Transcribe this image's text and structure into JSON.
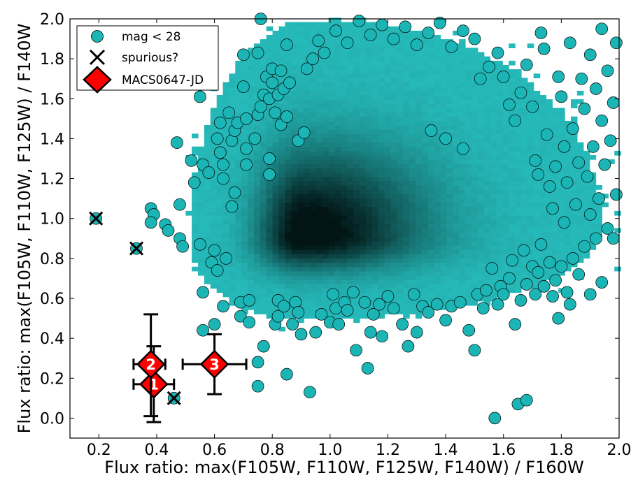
{
  "chart_data": {
    "type": "scatter",
    "title": "",
    "xlabel": "Flux ratio:  max(F105W, F110W, F125W, F140W)  /  F160W",
    "ylabel": "Flux ratio:  max(F105W, F110W, F125W)  /  F140W",
    "xlim": [
      0.1,
      2.0
    ],
    "ylim": [
      -0.1,
      2.0
    ],
    "x_ticks": [
      "0.2",
      "0.4",
      "0.6",
      "0.8",
      "1.0",
      "1.2",
      "1.4",
      "1.6",
      "1.8",
      "2.0"
    ],
    "y_ticks": [
      "0.0",
      "0.2",
      "0.4",
      "0.6",
      "0.8",
      "1.0",
      "1.2",
      "1.4",
      "1.6",
      "1.8",
      "2.0"
    ],
    "grid": false,
    "legend_position": "top-left",
    "colors": {
      "point_fill": "#1bb5b5",
      "density_light": "#26b9b9",
      "density_dark": "#021414",
      "candidate_fill": "#ff0000",
      "spurious_mark": "#000000"
    },
    "series": [
      {
        "name": "mag < 28",
        "kind": "density-2d",
        "peak": [
          0.9,
          0.9
        ],
        "note": "2D histogram of the bulk of the catalogue"
      },
      {
        "name": "mag < 28",
        "kind": "points",
        "points": [
          [
            0.19,
            1.0
          ],
          [
            0.33,
            0.85
          ],
          [
            0.46,
            0.1
          ],
          [
            0.38,
            1.05
          ],
          [
            0.39,
            1.02
          ],
          [
            0.38,
            0.98
          ],
          [
            0.43,
            0.97
          ],
          [
            0.44,
            0.94
          ],
          [
            0.47,
            1.38
          ],
          [
            0.48,
            0.9
          ],
          [
            0.48,
            1.07
          ],
          [
            0.49,
            0.86
          ],
          [
            0.52,
            1.29
          ],
          [
            0.53,
            1.18
          ],
          [
            0.55,
            1.61
          ],
          [
            0.56,
            1.27
          ],
          [
            0.55,
            0.87
          ],
          [
            0.56,
            0.63
          ],
          [
            0.56,
            0.44
          ],
          [
            0.58,
            1.23
          ],
          [
            0.59,
            0.78
          ],
          [
            0.6,
            0.47
          ],
          [
            0.6,
            0.84
          ],
          [
            0.61,
            0.74
          ],
          [
            0.61,
            1.4
          ],
          [
            0.62,
            1.33
          ],
          [
            0.62,
            1.48
          ],
          [
            0.63,
            1.27
          ],
          [
            0.63,
            1.2
          ],
          [
            0.63,
            0.56
          ],
          [
            0.64,
            0.8
          ],
          [
            0.65,
            1.53
          ],
          [
            0.66,
            1.39
          ],
          [
            0.66,
            1.06
          ],
          [
            0.67,
            1.13
          ],
          [
            0.67,
            1.44
          ],
          [
            0.68,
            1.48
          ],
          [
            0.69,
            0.58
          ],
          [
            0.69,
            0.51
          ],
          [
            0.7,
            1.82
          ],
          [
            0.7,
            1.66
          ],
          [
            0.71,
            1.5
          ],
          [
            0.71,
            1.35
          ],
          [
            0.71,
            1.27
          ],
          [
            0.72,
            0.59
          ],
          [
            0.72,
            0.48
          ],
          [
            0.74,
            1.4
          ],
          [
            0.75,
            1.83
          ],
          [
            0.75,
            1.52
          ],
          [
            0.75,
            0.28
          ],
          [
            0.75,
            0.16
          ],
          [
            0.76,
            2.0
          ],
          [
            0.76,
            1.56
          ],
          [
            0.77,
            0.36
          ],
          [
            0.77,
            1.62
          ],
          [
            0.78,
            1.71
          ],
          [
            0.79,
            1.6
          ],
          [
            0.79,
            1.3
          ],
          [
            0.79,
            1.22
          ],
          [
            0.8,
            1.68
          ],
          [
            0.8,
            1.75
          ],
          [
            0.81,
            1.53
          ],
          [
            0.81,
            0.47
          ],
          [
            0.82,
            0.59
          ],
          [
            0.82,
            0.51
          ],
          [
            0.82,
            1.62
          ],
          [
            0.83,
            1.74
          ],
          [
            0.83,
            1.47
          ],
          [
            0.84,
            1.65
          ],
          [
            0.84,
            0.56
          ],
          [
            0.85,
            0.22
          ],
          [
            0.85,
            1.51
          ],
          [
            0.85,
            1.87
          ],
          [
            0.86,
            1.68
          ],
          [
            0.87,
            0.47
          ],
          [
            0.88,
            0.58
          ],
          [
            0.89,
            0.53
          ],
          [
            0.89,
            1.39
          ],
          [
            0.9,
            0.42
          ],
          [
            0.91,
            1.43
          ],
          [
            0.92,
            1.75
          ],
          [
            0.93,
            0.13
          ],
          [
            0.94,
            1.8
          ],
          [
            0.95,
            0.43
          ],
          [
            0.96,
            1.89
          ],
          [
            0.97,
            0.52
          ],
          [
            0.98,
            1.83
          ],
          [
            1.0,
            0.48
          ],
          [
            1.01,
            0.62
          ],
          [
            1.02,
            0.55
          ],
          [
            1.03,
            0.47
          ],
          [
            1.05,
            0.58
          ],
          [
            1.06,
            0.54
          ],
          [
            1.08,
            0.63
          ],
          [
            1.09,
            0.34
          ],
          [
            1.12,
            0.58
          ],
          [
            1.13,
            0.25
          ],
          [
            1.14,
            0.43
          ],
          [
            1.15,
            0.52
          ],
          [
            1.17,
            0.57
          ],
          [
            1.18,
            0.41
          ],
          [
            1.2,
            0.61
          ],
          [
            1.22,
            0.55
          ],
          [
            1.25,
            0.47
          ],
          [
            1.27,
            0.36
          ],
          [
            1.29,
            0.62
          ],
          [
            1.3,
            0.43
          ],
          [
            1.32,
            0.56
          ],
          [
            1.34,
            0.53
          ],
          [
            1.37,
            0.57
          ],
          [
            1.4,
            0.49
          ],
          [
            1.42,
            0.56
          ],
          [
            1.45,
            0.58
          ],
          [
            1.48,
            0.44
          ],
          [
            1.5,
            0.34
          ],
          [
            1.51,
            0.62
          ],
          [
            1.53,
            0.55
          ],
          [
            1.54,
            0.64
          ],
          [
            1.56,
            0.75
          ],
          [
            1.57,
            0.0
          ],
          [
            1.58,
            0.57
          ],
          [
            1.59,
            0.66
          ],
          [
            1.6,
            0.62
          ],
          [
            1.62,
            0.7
          ],
          [
            1.63,
            0.79
          ],
          [
            1.64,
            0.47
          ],
          [
            1.65,
            0.07
          ],
          [
            1.66,
            0.59
          ],
          [
            1.67,
            0.84
          ],
          [
            1.68,
            0.67
          ],
          [
            1.68,
            0.09
          ],
          [
            1.7,
            0.76
          ],
          [
            1.71,
            0.62
          ],
          [
            1.72,
            0.73
          ],
          [
            1.73,
            0.87
          ],
          [
            1.74,
            0.66
          ],
          [
            1.76,
            0.78
          ],
          [
            1.77,
            0.61
          ],
          [
            1.78,
            0.69
          ],
          [
            1.79,
            0.5
          ],
          [
            1.8,
            0.76
          ],
          [
            1.82,
            0.63
          ],
          [
            1.83,
            0.57
          ],
          [
            1.84,
            0.8
          ],
          [
            1.86,
            0.72
          ],
          [
            1.88,
            0.86
          ],
          [
            1.9,
            0.62
          ],
          [
            1.92,
            0.9
          ],
          [
            1.94,
            0.68
          ],
          [
            1.96,
            0.95
          ],
          [
            1.98,
            0.9
          ],
          [
            1.52,
            1.7
          ],
          [
            1.55,
            1.76
          ],
          [
            1.58,
            1.83
          ],
          [
            1.6,
            1.71
          ],
          [
            1.62,
            1.57
          ],
          [
            1.64,
            1.49
          ],
          [
            1.66,
            1.63
          ],
          [
            1.68,
            1.77
          ],
          [
            1.7,
            1.56
          ],
          [
            1.71,
            1.29
          ],
          [
            1.72,
            1.22
          ],
          [
            1.73,
            1.93
          ],
          [
            1.74,
            1.85
          ],
          [
            1.75,
            1.42
          ],
          [
            1.76,
            1.16
          ],
          [
            1.77,
            1.05
          ],
          [
            1.78,
            1.26
          ],
          [
            1.79,
            1.71
          ],
          [
            1.8,
            1.61
          ],
          [
            1.81,
            1.36
          ],
          [
            1.81,
            0.98
          ],
          [
            1.82,
            1.18
          ],
          [
            1.83,
            1.88
          ],
          [
            1.84,
            1.45
          ],
          [
            1.85,
            1.07
          ],
          [
            1.86,
            1.28
          ],
          [
            1.87,
            1.7
          ],
          [
            1.88,
            1.55
          ],
          [
            1.89,
            1.21
          ],
          [
            1.9,
            1.02
          ],
          [
            1.9,
            1.82
          ],
          [
            1.91,
            1.36
          ],
          [
            1.92,
            1.65
          ],
          [
            1.93,
            1.1
          ],
          [
            1.94,
            1.49
          ],
          [
            1.94,
            1.95
          ],
          [
            1.95,
            1.27
          ],
          [
            1.96,
            1.74
          ],
          [
            1.97,
            1.39
          ],
          [
            1.98,
            1.58
          ],
          [
            1.99,
            1.12
          ],
          [
            1.99,
            1.88
          ],
          [
            1.02,
            1.94
          ],
          [
            1.06,
            1.88
          ],
          [
            1.1,
            1.99
          ],
          [
            1.14,
            1.92
          ],
          [
            1.18,
            1.97
          ],
          [
            1.22,
            1.9
          ],
          [
            1.26,
            1.96
          ],
          [
            1.3,
            1.87
          ],
          [
            1.34,
            1.93
          ],
          [
            1.38,
            1.98
          ],
          [
            1.42,
            1.86
          ],
          [
            1.46,
            1.94
          ],
          [
            1.5,
            1.9
          ],
          [
            1.35,
            1.44
          ],
          [
            1.4,
            1.4
          ],
          [
            1.46,
            1.35
          ]
        ]
      },
      {
        "name": "spurious?",
        "kind": "cross",
        "points": [
          [
            0.19,
            1.0
          ],
          [
            0.33,
            0.85
          ],
          [
            0.46,
            0.1
          ]
        ]
      },
      {
        "name": "MACS0647-JD",
        "kind": "diamond",
        "points": [
          {
            "label": "1",
            "x": 0.39,
            "y": 0.17,
            "xerr": [
              0.07,
              0.07
            ],
            "yerr": [
              0.19,
              0.19
            ]
          },
          {
            "label": "2",
            "x": 0.38,
            "y": 0.27,
            "xerr": [
              0.06,
              0.05
            ],
            "yerr": [
              0.26,
              0.25
            ]
          },
          {
            "label": "3",
            "x": 0.6,
            "y": 0.27,
            "xerr": [
              0.11,
              0.11
            ],
            "yerr": [
              0.15,
              0.15
            ]
          }
        ]
      }
    ]
  }
}
